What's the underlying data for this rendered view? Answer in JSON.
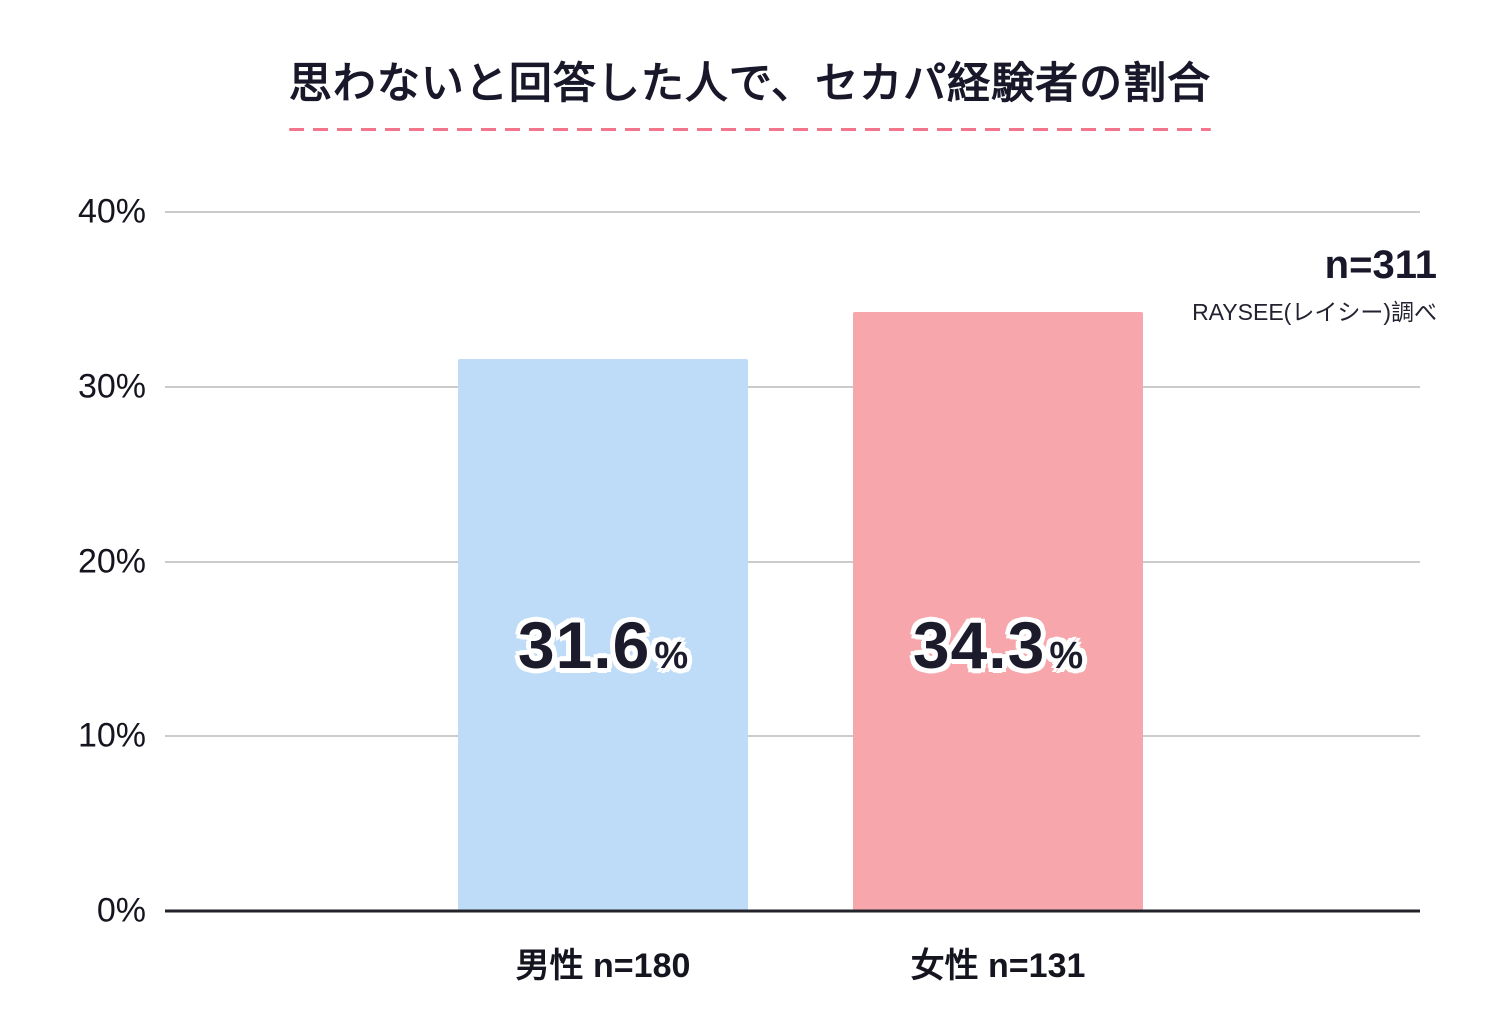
{
  "annotation": {
    "sample_size": "n=311",
    "source": "RAYSEE(レイシー)調べ"
  },
  "chart_data": {
    "type": "bar",
    "title": "思わないと回答した人で、セカパ経験者の割合",
    "categories": [
      "男性 n=180",
      "女性 n=131"
    ],
    "values": [
      31.6,
      34.3
    ],
    "value_labels": [
      "31.6",
      "34.3"
    ],
    "unit": "%",
    "series_colors": [
      "#bedcf8",
      "#f7a7ab"
    ],
    "xlabel": "",
    "ylabel": "",
    "ylim": [
      0,
      40
    ],
    "yticks": [
      "40%",
      "30%",
      "20%",
      "10%",
      "0%"
    ],
    "ytick_values": [
      40,
      30,
      20,
      10,
      0
    ],
    "grid": true,
    "legend": false,
    "colors": {
      "title_text": "#18182a",
      "title_underline": "#f2758d",
      "gridline": "#cbcbcb",
      "axis": "#23232b",
      "value_text": "#1b1b2b",
      "value_outline": "#ffffff"
    }
  }
}
